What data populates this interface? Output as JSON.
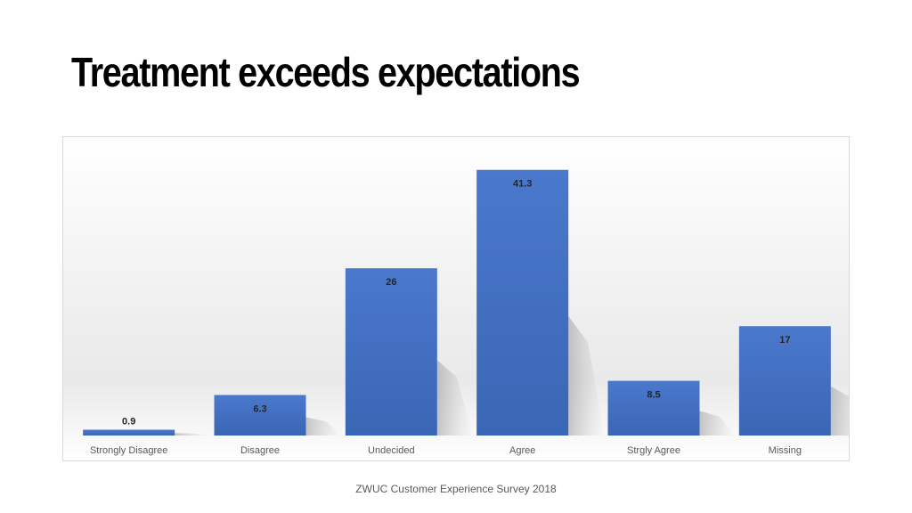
{
  "slide": {
    "title": "Treatment exceeds expectations",
    "footer": "ZWUC Customer Experience Survey 2018"
  },
  "colors": {
    "bar": "#4472c4",
    "label": "#262626",
    "axis_label": "#595959"
  },
  "chart_data": {
    "type": "bar",
    "title": "",
    "xlabel": "",
    "ylabel": "",
    "categories": [
      "Strongly Disagree",
      "Disagree",
      "Undecided",
      "Agree",
      "Strgly Agree",
      "Missing"
    ],
    "values": [
      0.9,
      6.3,
      26,
      41.3,
      8.5,
      17
    ],
    "data_labels": [
      "0.9",
      "6.3",
      "26",
      "41.3",
      "8.5",
      "17"
    ],
    "ylim": [
      0,
      45
    ],
    "grid": false,
    "legend": "none"
  }
}
